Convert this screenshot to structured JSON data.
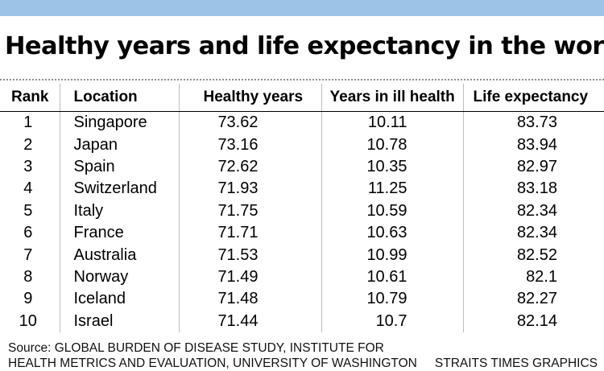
{
  "title": "Healthy years and life expectancy in the world",
  "table": {
    "headers": [
      "Rank",
      "Location",
      "Healthy years",
      "Years in ill health",
      "Life expectancy"
    ],
    "rows": [
      [
        "1",
        "Singapore",
        "73.62",
        "10.11",
        "83.73"
      ],
      [
        "2",
        "Japan",
        "73.16",
        "10.78",
        "83.94"
      ],
      [
        "3",
        "Spain",
        "72.62",
        "10.35",
        "82.97"
      ],
      [
        "4",
        "Switzerland",
        "71.93",
        "11.25",
        "83.18"
      ],
      [
        "5",
        "Italy",
        "71.75",
        "10.59",
        "82.34"
      ],
      [
        "6",
        "France",
        "71.71",
        "10.63",
        "82.34"
      ],
      [
        "7",
        "Australia",
        "71.53",
        "10.99",
        "82.52"
      ],
      [
        "8",
        "Norway",
        "71.49",
        "10.61",
        "82.1"
      ],
      [
        "9",
        "Iceland",
        "71.48",
        "10.79",
        "82.27"
      ],
      [
        "10",
        "Israel",
        "71.44",
        "10.7",
        "82.14"
      ]
    ]
  },
  "footer": {
    "source_line1": "Source: GLOBAL BURDEN OF DISEASE STUDY, INSTITUTE FOR",
    "source_line2": "HEALTH METRICS AND EVALUATION, UNIVERSITY OF WASHINGTON",
    "credit": "STRAITS TIMES GRAPHICS"
  },
  "colors": {
    "top_bar": "#9dc3e6",
    "background": "#ffffff",
    "text": "#000000"
  }
}
